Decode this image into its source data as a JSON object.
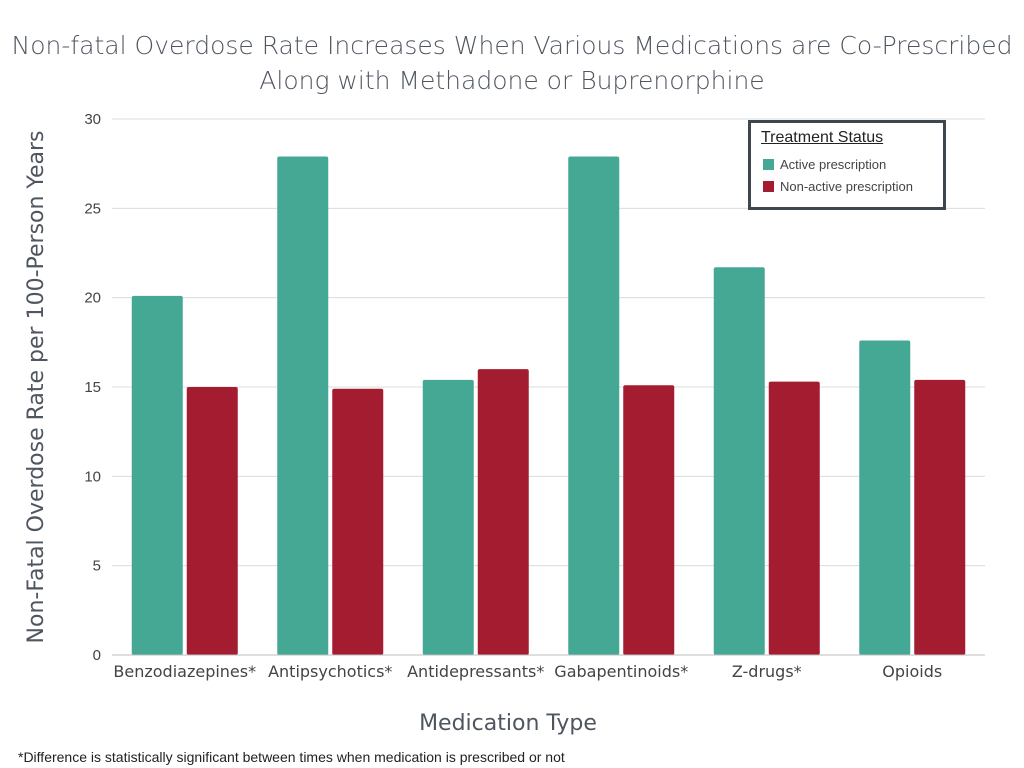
{
  "chart_data": {
    "type": "bar",
    "title": "Non-fatal Overdose Rate Increases When Various Medications are Co-Prescribed Along with Methadone or Buprenorphine",
    "xlabel": "Medication Type",
    "ylabel": "Non-Fatal Overdose Rate per 100-Person Years",
    "ylim": [
      0,
      30
    ],
    "yticks": [
      0,
      5,
      10,
      15,
      20,
      25,
      30
    ],
    "grid": true,
    "legend_position": "top-right",
    "legend_title": "Treatment Status",
    "categories": [
      "Benzodiazepines*",
      "Antipsychotics*",
      "Antidepressants*",
      "Gabapentinoids*",
      "Z-drugs*",
      "Opioids"
    ],
    "series": [
      {
        "name": "Active prescription",
        "color": "#45a895",
        "values": [
          20.1,
          27.9,
          15.4,
          27.9,
          21.7,
          17.6
        ]
      },
      {
        "name": "Non-active prescription",
        "color": "#a41c30",
        "values": [
          15.0,
          14.9,
          16.0,
          15.1,
          15.3,
          15.4
        ]
      }
    ]
  },
  "footnote": "*Difference is statistically significant between times when medication is prescribed or not"
}
